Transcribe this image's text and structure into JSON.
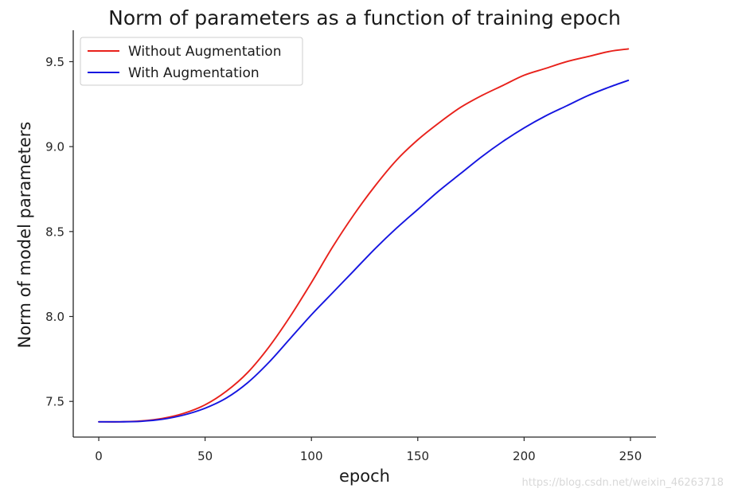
{
  "chart_data": {
    "type": "line",
    "title": "Norm of parameters as a function of training epoch",
    "xlabel": "epoch",
    "ylabel": "Norm of model parameters",
    "xlim": [
      -12,
      262
    ],
    "ylim": [
      7.29,
      9.685
    ],
    "xticks": [
      0,
      50,
      100,
      150,
      200,
      250
    ],
    "xtick_labels": [
      "0",
      "50",
      "100",
      "150",
      "200",
      "250"
    ],
    "yticks": [
      7.5,
      8.0,
      8.5,
      9.0,
      9.5
    ],
    "ytick_labels": [
      "7.5",
      "8.0",
      "8.5",
      "9.0",
      "9.5"
    ],
    "grid": false,
    "legend": "top-left",
    "series": [
      {
        "name": "Without Augmentation",
        "color": "#e8211b",
        "x": [
          0,
          10,
          20,
          30,
          40,
          50,
          60,
          70,
          80,
          90,
          100,
          110,
          120,
          130,
          140,
          150,
          160,
          170,
          180,
          190,
          200,
          210,
          220,
          230,
          240,
          249
        ],
        "y": [
          7.38,
          7.38,
          7.385,
          7.4,
          7.43,
          7.48,
          7.56,
          7.67,
          7.82,
          8.0,
          8.2,
          8.41,
          8.6,
          8.77,
          8.92,
          9.04,
          9.14,
          9.23,
          9.3,
          9.36,
          9.42,
          9.46,
          9.5,
          9.53,
          9.56,
          9.575
        ]
      },
      {
        "name": "With Augmentation",
        "color": "#1515e0",
        "x": [
          0,
          10,
          20,
          30,
          40,
          50,
          60,
          70,
          80,
          90,
          100,
          110,
          120,
          130,
          140,
          150,
          160,
          170,
          180,
          190,
          200,
          210,
          220,
          230,
          240,
          249
        ],
        "y": [
          7.38,
          7.38,
          7.383,
          7.395,
          7.42,
          7.46,
          7.52,
          7.61,
          7.73,
          7.87,
          8.01,
          8.14,
          8.27,
          8.4,
          8.52,
          8.63,
          8.74,
          8.84,
          8.94,
          9.03,
          9.11,
          9.18,
          9.24,
          9.3,
          9.35,
          9.39
        ]
      }
    ]
  },
  "watermark": "https://blog.csdn.net/weixin_46263718"
}
